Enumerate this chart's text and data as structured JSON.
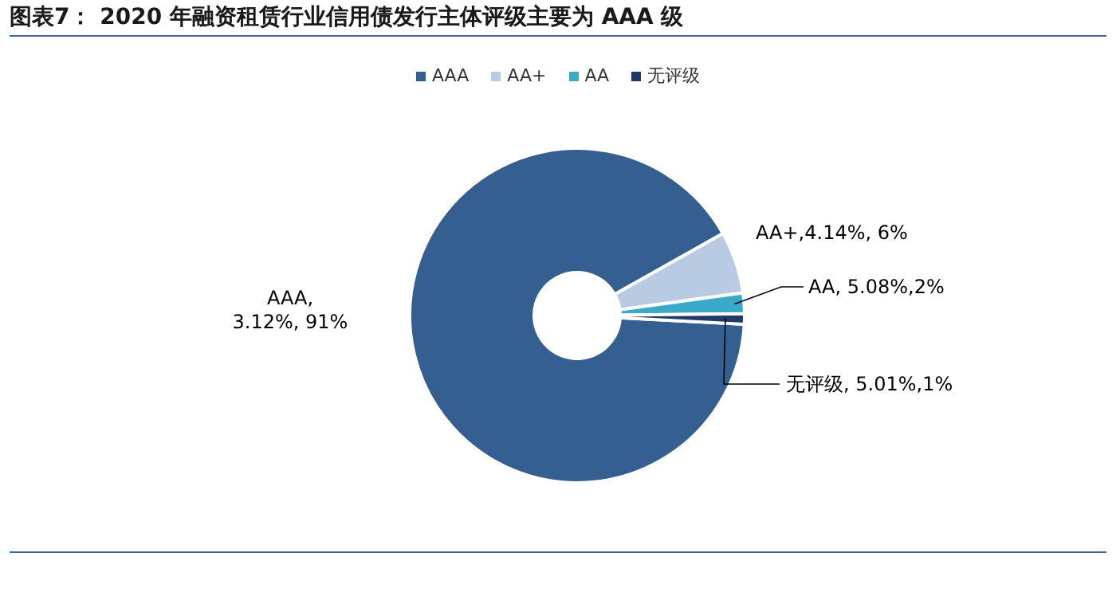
{
  "chart_data": {
    "type": "donut",
    "title": "图表7：  2020 年融资租赁行业信用债发行主体评级主要为 AAA 级",
    "categories": [
      "AAA",
      "AA+",
      "AA",
      "无评级"
    ],
    "values": [
      91,
      6,
      2,
      1
    ],
    "colors": [
      "#355f91",
      "#b9cbe3",
      "#3ba9c9",
      "#1f3a68"
    ],
    "value_labels": [
      "AAA, 3.12%, 91%",
      "AA+,4.14%, 6%",
      "AA, 5.08%,2%",
      "无评级, 5.01%,1%"
    ],
    "legend": "top"
  }
}
